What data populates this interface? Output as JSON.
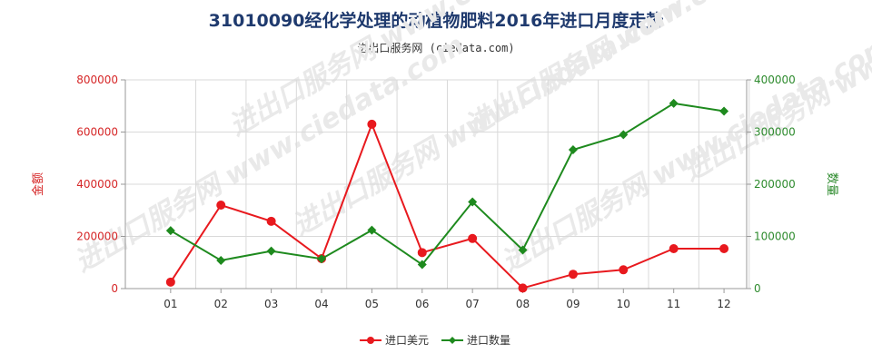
{
  "title": "31010090经化学处理的动植物肥料2016年进口月度走势",
  "subtitle": "进出口服务网 (ciedata.com)",
  "watermark": "进出口服务网 www.ciedata.com",
  "chart_data": {
    "type": "line",
    "categories": [
      "01",
      "02",
      "03",
      "04",
      "05",
      "06",
      "07",
      "08",
      "09",
      "10",
      "11",
      "12"
    ],
    "y_left": {
      "label": "金额",
      "ylim": [
        0,
        800000
      ],
      "ticks": [
        0,
        200000,
        400000,
        600000,
        800000
      ]
    },
    "y_right": {
      "label": "数量",
      "ylim": [
        0,
        400000
      ],
      "ticks": [
        0,
        100000,
        200000,
        300000,
        400000
      ]
    },
    "grid": true,
    "legend_position": "bottom-center",
    "series": [
      {
        "name": "进口美元",
        "axis": "left",
        "color": "#e8191e",
        "marker": "circle",
        "values": [
          25000,
          320000,
          258000,
          115000,
          630000,
          138000,
          192000,
          2000,
          55000,
          72000,
          153000,
          153000
        ]
      },
      {
        "name": "进口数量",
        "axis": "right",
        "color": "#1e8a1e",
        "marker": "diamond",
        "values": [
          111000,
          54000,
          72000,
          57000,
          112000,
          46000,
          166000,
          74000,
          266000,
          295000,
          355000,
          340000
        ]
      }
    ]
  }
}
